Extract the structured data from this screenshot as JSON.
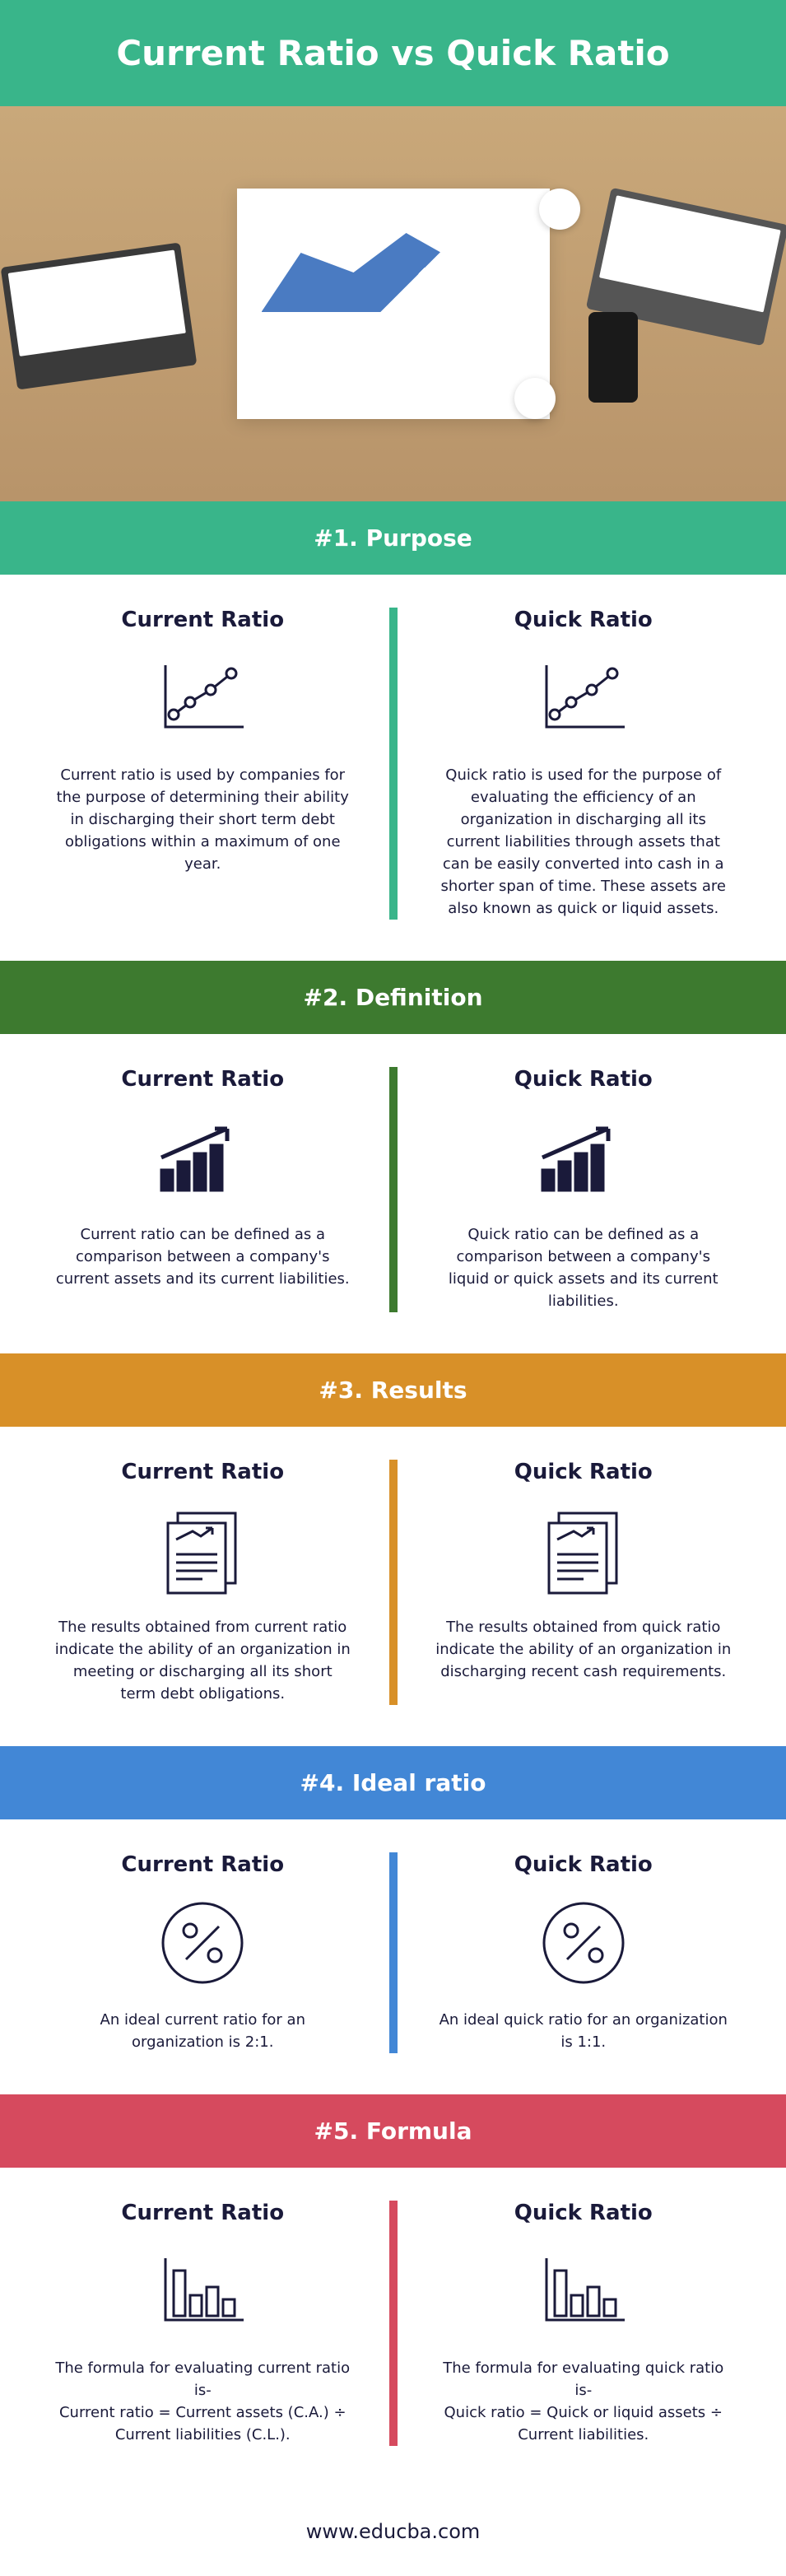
{
  "header": {
    "title": "Current Ratio vs Quick Ratio",
    "bg_color": "#39b58a",
    "title_color": "#ffffff",
    "title_fontsize": 42
  },
  "sections": [
    {
      "number": "#1",
      "label": "Purpose",
      "bar_color": "#39b58a",
      "icon": "line-chart",
      "left": {
        "title": "Current Ratio",
        "text": "Current ratio is used by companies for the purpose of determining their ability in discharging their short term debt obligations within a maximum of one year."
      },
      "right": {
        "title": "Quick Ratio",
        "text": "Quick ratio is used for the purpose of evaluating the efficiency of an organization in discharging all its current liabilities through assets that can be easily converted into cash in a shorter span of time. These assets are also known as quick or liquid assets."
      }
    },
    {
      "number": "#2",
      "label": "Definition",
      "bar_color": "#3d7a2f",
      "icon": "growth-chart",
      "left": {
        "title": "Current Ratio",
        "text": "Current ratio can be defined as a comparison between a company's current assets and its current liabilities."
      },
      "right": {
        "title": "Quick Ratio",
        "text": "Quick ratio can be defined as a comparison between a company's liquid or quick assets and its current liabilities."
      }
    },
    {
      "number": "#3",
      "label": "Results",
      "bar_color": "#d89028",
      "icon": "report-pages",
      "left": {
        "title": "Current Ratio",
        "text": "The results obtained from current ratio indicate the ability of an organization in meeting or discharging all its short term debt obligations."
      },
      "right": {
        "title": "Quick Ratio",
        "text": "The results obtained from quick ratio indicate the ability of an organization in discharging recent cash requirements."
      }
    },
    {
      "number": "#4",
      "label": "Ideal ratio",
      "bar_color": "#4287d6",
      "icon": "percent-circle",
      "left": {
        "title": "Current Ratio",
        "text": "An ideal current ratio for an organization is 2:1."
      },
      "right": {
        "title": "Quick Ratio",
        "text": "An ideal quick ratio for an organization is 1:1."
      }
    },
    {
      "number": "#5",
      "label": "Formula",
      "bar_color": "#d64a5e",
      "icon": "bar-chart",
      "left": {
        "title": "Current Ratio",
        "text": "The formula for evaluating current ratio is-\nCurrent ratio = Current assets (C.A.) ÷ Current liabilities (C.L.)."
      },
      "right": {
        "title": "Quick Ratio",
        "text": "The formula for evaluating quick ratio is-\nQuick ratio = Quick or liquid assets ÷ Current liabilities."
      }
    }
  ],
  "footer": {
    "text": "www.educba.com",
    "color": "#1a1a3a",
    "fontsize": 24
  },
  "icons": {
    "stroke_color": "#1a1a3a",
    "stroke_width": 3
  }
}
